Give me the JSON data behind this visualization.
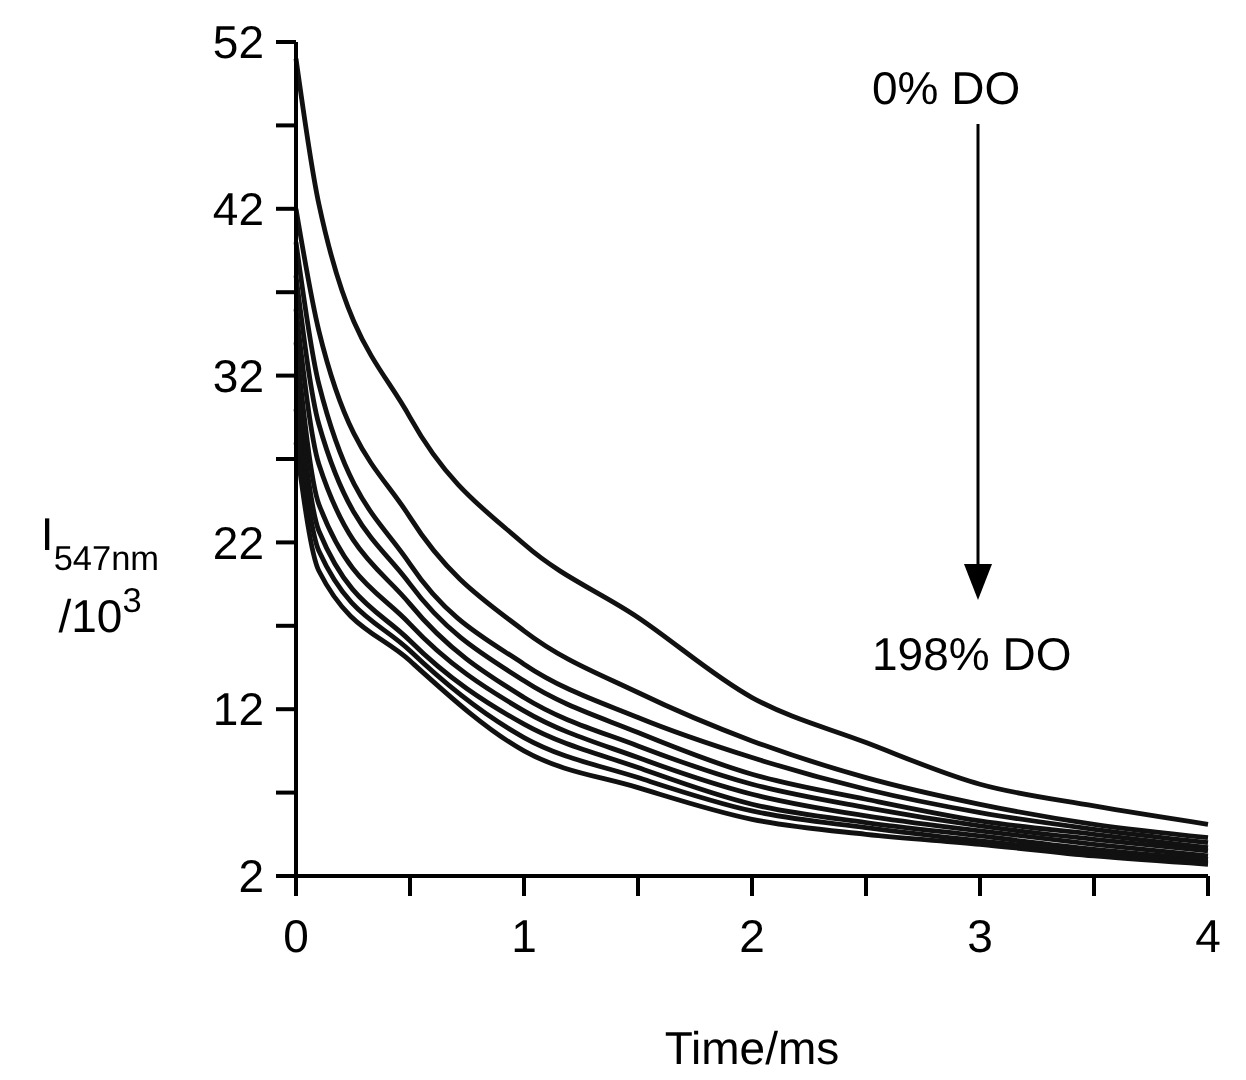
{
  "chart_data": {
    "type": "line",
    "xlabel": "Time/ms",
    "ylabel": "I$_{547nm}$/10$^{3}$",
    "x": [
      0,
      0.1,
      0.5,
      1,
      1.5,
      2,
      2.5,
      3,
      3.5,
      4
    ],
    "series": [
      {
        "color": "#111111",
        "values": [
          51,
          42.3,
          29.5,
          21.9,
          17.5,
          12.7,
          10,
          7.5,
          6.2,
          5.1
        ]
      },
      {
        "color": "#111111",
        "values": [
          42,
          34.7,
          23.5,
          16.7,
          13.0,
          10.1,
          7.9,
          6.3,
          5.1,
          4.3
        ]
      },
      {
        "color": "#111111",
        "values": [
          40,
          31.5,
          20.7,
          14.7,
          11.5,
          9.1,
          7.2,
          5.8,
          4.8,
          4.0
        ]
      },
      {
        "color": "#111111",
        "values": [
          38,
          29.1,
          19.5,
          13.7,
          10.6,
          8.1,
          6.6,
          5.3,
          4.5,
          3.7
        ]
      },
      {
        "color": "#111111",
        "values": [
          36,
          26.7,
          18.3,
          12.7,
          9.8,
          7.5,
          6.1,
          5.0,
          4.2,
          3.5
        ]
      },
      {
        "color": "#111111",
        "values": [
          34,
          24.3,
          17.1,
          11.9,
          9.1,
          6.9,
          5.6,
          4.7,
          3.9,
          3.2
        ]
      },
      {
        "color": "#111111",
        "values": [
          32,
          22.7,
          16.1,
          11.1,
          8.5,
          6.3,
          5.2,
          4.4,
          3.6,
          3.0
        ]
      },
      {
        "color": "#111111",
        "values": [
          30,
          21.5,
          15.5,
          10.3,
          7.9,
          5.9,
          4.9,
          4.1,
          3.4,
          2.8
        ]
      },
      {
        "color": "#111111",
        "values": [
          28,
          20.3,
          14.9,
          9.5,
          7.3,
          5.4,
          4.5,
          3.9,
          3.2,
          2.7
        ]
      }
    ],
    "xlim": [
      0,
      4
    ],
    "xticks": [
      0,
      {
        "value": 0.5,
        "label": null
      },
      1,
      {
        "value": 1.5,
        "label": null
      },
      2,
      {
        "value": 2.5,
        "label": null
      },
      3,
      {
        "value": 3.5,
        "label": null
      },
      4
    ],
    "ylim": [
      2,
      52
    ],
    "yticks": [
      2,
      {
        "value": 7,
        "label": null
      },
      12,
      {
        "value": 17,
        "label": null
      },
      22,
      {
        "value": 27,
        "label": null
      },
      32,
      {
        "value": 37,
        "label": null
      },
      42,
      {
        "value": 47,
        "label": null
      },
      52
    ],
    "annotations": [
      "0% DO",
      "198% DO"
    ],
    "line_style": "solid",
    "marker": "none",
    "grid": false
  }
}
